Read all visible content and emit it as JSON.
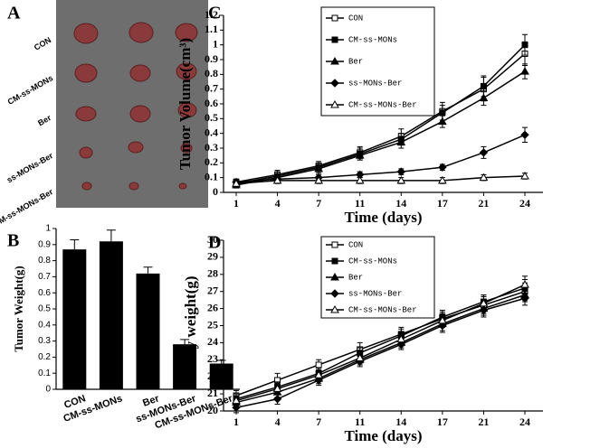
{
  "photo": {
    "panel": "A",
    "labels": [
      "CON",
      "CM-ss-MONs",
      "Ber",
      "ss-MONs-Ber",
      "CM-ss-MONs-Ber"
    ]
  },
  "chart_data": [
    {
      "panel": "B",
      "type": "bar",
      "y_label": "Tumor Weight(g)",
      "categories": [
        "CON",
        "CM-ss-MONs",
        "Ber",
        "ss-MONs-Ber",
        "CM-ss-MONs-Ber"
      ],
      "values": [
        0.87,
        0.92,
        0.72,
        0.28,
        0.16
      ],
      "errors": [
        0.06,
        0.07,
        0.04,
        0.03,
        0.02
      ],
      "color": "#000000",
      "ylim": [
        0,
        1
      ],
      "yticks": [
        0,
        0.1,
        0.2,
        0.3,
        0.4,
        0.5,
        0.6,
        0.7,
        0.8,
        0.9,
        1
      ]
    },
    {
      "panel": "C",
      "type": "line",
      "x_label": "Time  (days)",
      "y_label": "Tumor Volume(cm³)",
      "categories": [
        "1",
        "4",
        "7",
        "11",
        "14",
        "17",
        "21",
        "24"
      ],
      "ylim": [
        0,
        1.2
      ],
      "yticks": [
        0,
        0.1,
        0.2,
        0.3,
        0.4,
        0.5,
        0.6,
        0.7,
        0.8,
        0.9,
        1,
        1.1,
        1.2
      ],
      "legend": "upper left",
      "series": [
        {
          "name": "CON",
          "color": "#000000",
          "marker": "open-square",
          "values": [
            0.07,
            0.12,
            0.18,
            0.27,
            0.38,
            0.55,
            0.7,
            0.94
          ],
          "errors": [
            0.02,
            0.03,
            0.03,
            0.04,
            0.05,
            0.06,
            0.08,
            0.08
          ]
        },
        {
          "name": "CM-ss-MONs",
          "color": "#000000",
          "marker": "square",
          "values": [
            0.06,
            0.11,
            0.17,
            0.26,
            0.36,
            0.54,
            0.72,
            1.0
          ],
          "errors": [
            0.02,
            0.03,
            0.03,
            0.04,
            0.04,
            0.05,
            0.07,
            0.07
          ]
        },
        {
          "name": "Ber",
          "color": "#000000",
          "marker": "triangle",
          "values": [
            0.05,
            0.1,
            0.16,
            0.25,
            0.34,
            0.48,
            0.64,
            0.82
          ],
          "errors": [
            0.02,
            0.02,
            0.03,
            0.03,
            0.04,
            0.04,
            0.05,
            0.05
          ]
        },
        {
          "name": "ss-MONs-Ber",
          "color": "#000000",
          "marker": "diamond",
          "values": [
            0.07,
            0.09,
            0.1,
            0.12,
            0.14,
            0.17,
            0.27,
            0.39
          ],
          "errors": [
            0.02,
            0.02,
            0.02,
            0.02,
            0.02,
            0.02,
            0.04,
            0.05
          ]
        },
        {
          "name": "CM-ss-MONs-Ber",
          "color": "#000000",
          "marker": "open-triangle",
          "values": [
            0.06,
            0.08,
            0.08,
            0.08,
            0.08,
            0.08,
            0.1,
            0.11
          ],
          "errors": [
            0.01,
            0.02,
            0.02,
            0.02,
            0.02,
            0.02,
            0.02,
            0.02
          ]
        }
      ]
    },
    {
      "panel": "D",
      "type": "line",
      "x_label": "Time  (days)",
      "y_label": "Body weight(g)",
      "categories": [
        "1",
        "4",
        "7",
        "11",
        "14",
        "17",
        "21",
        "24"
      ],
      "ylim": [
        20,
        30
      ],
      "yticks": [
        20,
        21,
        22,
        23,
        24,
        25,
        26,
        27,
        28,
        29,
        30
      ],
      "legend": "upper left",
      "series": [
        {
          "name": "CON",
          "color": "#000000",
          "marker": "open-square",
          "values": [
            20.9,
            21.8,
            22.7,
            23.6,
            24.5,
            25.4,
            26.2,
            27.0
          ],
          "errors": [
            0.3,
            0.4,
            0.3,
            0.4,
            0.4,
            0.4,
            0.5,
            0.5
          ]
        },
        {
          "name": "CM-ss-MONs",
          "color": "#000000",
          "marker": "square",
          "values": [
            20.7,
            21.4,
            22.2,
            23.4,
            24.4,
            25.5,
            26.4,
            27.2
          ],
          "errors": [
            0.3,
            0.3,
            0.3,
            0.3,
            0.4,
            0.4,
            0.4,
            0.5
          ]
        },
        {
          "name": "Ber",
          "color": "#000000",
          "marker": "triangle",
          "values": [
            20.5,
            21.1,
            21.9,
            23.0,
            24.0,
            25.1,
            26.0,
            26.8
          ],
          "errors": [
            0.3,
            0.3,
            0.3,
            0.3,
            0.3,
            0.4,
            0.4,
            0.4
          ]
        },
        {
          "name": "ss-MONs-Ber",
          "color": "#000000",
          "marker": "diamond",
          "values": [
            20.2,
            20.7,
            21.8,
            22.9,
            23.9,
            25.0,
            25.9,
            26.6
          ],
          "errors": [
            0.3,
            0.3,
            0.3,
            0.3,
            0.3,
            0.4,
            0.4,
            0.4
          ]
        },
        {
          "name": "CM-ss-MONs-Ber",
          "color": "#000000",
          "marker": "open-triangle",
          "values": [
            20.6,
            21.3,
            22.1,
            23.1,
            24.2,
            25.3,
            26.3,
            27.4
          ],
          "errors": [
            0.3,
            0.3,
            0.3,
            0.3,
            0.4,
            0.4,
            0.4,
            0.5
          ]
        }
      ]
    }
  ]
}
